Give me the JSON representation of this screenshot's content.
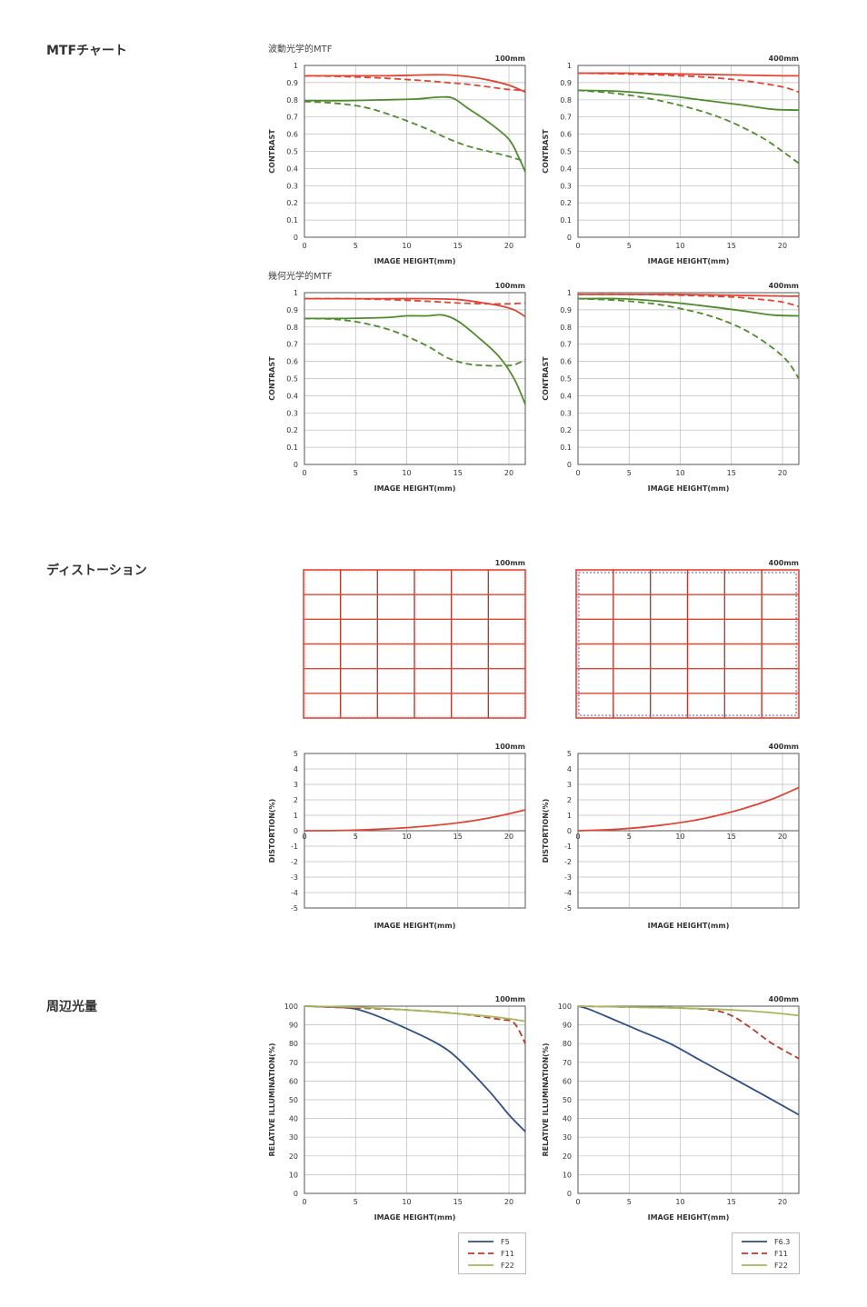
{
  "sections": {
    "mtf": "MTFチャート",
    "distortion": "ディストーション",
    "vignetting": "周辺光量"
  },
  "subtitles": {
    "wave": "波動光学的MTF",
    "geo": "幾何光学的MTF"
  },
  "colors": {
    "red": "#e04535",
    "darkred": "#c0392b",
    "green": "#4e8c2d",
    "blue": "#2f4f86",
    "olive": "#a6b85c",
    "grid": "#bbbbbb",
    "dist_blue": "#4a76c8"
  },
  "chart_data": [
    {
      "id": "mtf-wave-100",
      "type": "line",
      "corner_label": "100mm",
      "xlabel": "IMAGE HEIGHT(mm)",
      "ylabel": "CONTRAST",
      "xlim": [
        0,
        21.6
      ],
      "ylim": [
        0,
        1
      ],
      "xticks": [
        0,
        5,
        10,
        15,
        20
      ],
      "yticks": [
        0,
        0.1,
        0.2,
        0.3,
        0.4,
        0.5,
        0.6,
        0.7,
        0.8,
        0.9,
        1
      ],
      "grid": true,
      "series": [
        {
          "color": "red",
          "dash": false,
          "x": [
            0,
            4,
            8,
            12,
            14,
            16,
            18,
            20,
            21.6
          ],
          "y": [
            0.94,
            0.94,
            0.94,
            0.945,
            0.945,
            0.935,
            0.915,
            0.885,
            0.845
          ]
        },
        {
          "color": "red",
          "dash": true,
          "x": [
            0,
            4,
            8,
            12,
            14,
            16,
            18,
            20,
            21.6
          ],
          "y": [
            0.94,
            0.935,
            0.925,
            0.91,
            0.9,
            0.89,
            0.875,
            0.86,
            0.855
          ]
        },
        {
          "color": "green",
          "dash": false,
          "x": [
            0,
            4,
            8,
            11,
            13,
            14.5,
            16,
            18,
            20,
            21,
            21.6
          ],
          "y": [
            0.795,
            0.795,
            0.8,
            0.805,
            0.815,
            0.81,
            0.75,
            0.67,
            0.57,
            0.46,
            0.38
          ]
        },
        {
          "color": "green",
          "dash": true,
          "x": [
            0,
            3,
            6,
            9,
            12,
            14,
            16,
            18,
            20,
            21.6
          ],
          "y": [
            0.79,
            0.78,
            0.755,
            0.7,
            0.63,
            0.575,
            0.53,
            0.5,
            0.47,
            0.44
          ]
        }
      ]
    },
    {
      "id": "mtf-wave-400",
      "type": "line",
      "corner_label": "400mm",
      "xlabel": "IMAGE HEIGHT(mm)",
      "ylabel": "CONTRAST",
      "xlim": [
        0,
        21.6
      ],
      "ylim": [
        0,
        1
      ],
      "xticks": [
        0,
        5,
        10,
        15,
        20
      ],
      "yticks": [
        0,
        0.1,
        0.2,
        0.3,
        0.4,
        0.5,
        0.6,
        0.7,
        0.8,
        0.9,
        1
      ],
      "grid": true,
      "series": [
        {
          "color": "red",
          "dash": false,
          "x": [
            0,
            5,
            10,
            15,
            20,
            21.6
          ],
          "y": [
            0.955,
            0.955,
            0.95,
            0.945,
            0.94,
            0.94
          ]
        },
        {
          "color": "red",
          "dash": true,
          "x": [
            0,
            5,
            10,
            14,
            17,
            20,
            21.6
          ],
          "y": [
            0.955,
            0.95,
            0.94,
            0.925,
            0.905,
            0.875,
            0.845
          ]
        },
        {
          "color": "green",
          "dash": false,
          "x": [
            0,
            4,
            8,
            12,
            16,
            19,
            21.6
          ],
          "y": [
            0.855,
            0.85,
            0.83,
            0.8,
            0.77,
            0.745,
            0.74
          ]
        },
        {
          "color": "green",
          "dash": true,
          "x": [
            0,
            4,
            8,
            12,
            15,
            18,
            20,
            21.6
          ],
          "y": [
            0.855,
            0.835,
            0.795,
            0.735,
            0.67,
            0.58,
            0.5,
            0.43
          ]
        }
      ]
    },
    {
      "id": "mtf-geo-100",
      "type": "line",
      "corner_label": "100mm",
      "xlabel": "IMAGE HEIGHT(mm)",
      "ylabel": "CONTRAST",
      "xlim": [
        0,
        21.6
      ],
      "ylim": [
        0,
        1
      ],
      "xticks": [
        0,
        5,
        10,
        15,
        20
      ],
      "yticks": [
        0,
        0.1,
        0.2,
        0.3,
        0.4,
        0.5,
        0.6,
        0.7,
        0.8,
        0.9,
        1
      ],
      "grid": true,
      "series": [
        {
          "color": "red",
          "dash": false,
          "x": [
            0,
            4,
            8,
            12,
            15,
            17,
            19,
            20.5,
            21.6
          ],
          "y": [
            0.965,
            0.965,
            0.965,
            0.965,
            0.96,
            0.945,
            0.925,
            0.9,
            0.86
          ]
        },
        {
          "color": "red",
          "dash": true,
          "x": [
            0,
            4,
            8,
            12,
            15,
            18,
            20,
            21.6
          ],
          "y": [
            0.965,
            0.965,
            0.96,
            0.95,
            0.94,
            0.935,
            0.935,
            0.94
          ]
        },
        {
          "color": "green",
          "dash": false,
          "x": [
            0,
            4,
            8,
            10,
            12,
            13.5,
            15,
            17,
            19,
            20.5,
            21.6
          ],
          "y": [
            0.85,
            0.85,
            0.855,
            0.865,
            0.865,
            0.87,
            0.835,
            0.74,
            0.63,
            0.5,
            0.35
          ]
        },
        {
          "color": "green",
          "dash": true,
          "x": [
            0,
            3,
            6,
            9,
            12,
            14,
            16,
            18,
            19.5,
            20.5,
            21.6
          ],
          "y": [
            0.85,
            0.845,
            0.82,
            0.77,
            0.69,
            0.62,
            0.585,
            0.575,
            0.575,
            0.58,
            0.61
          ]
        }
      ]
    },
    {
      "id": "mtf-geo-400",
      "type": "line",
      "corner_label": "400mm",
      "xlabel": "IMAGE HEIGHT(mm)",
      "ylabel": "CONTRAST",
      "xlim": [
        0,
        21.6
      ],
      "ylim": [
        0,
        1
      ],
      "xticks": [
        0,
        5,
        10,
        15,
        20
      ],
      "yticks": [
        0,
        0.1,
        0.2,
        0.3,
        0.4,
        0.5,
        0.6,
        0.7,
        0.8,
        0.9,
        1
      ],
      "grid": true,
      "series": [
        {
          "color": "red",
          "dash": false,
          "x": [
            0,
            5,
            10,
            15,
            20,
            21.6
          ],
          "y": [
            0.99,
            0.99,
            0.99,
            0.985,
            0.98,
            0.98
          ]
        },
        {
          "color": "red",
          "dash": true,
          "x": [
            0,
            5,
            10,
            15,
            18,
            20,
            21.6
          ],
          "y": [
            0.99,
            0.99,
            0.985,
            0.975,
            0.96,
            0.945,
            0.92
          ]
        },
        {
          "color": "green",
          "dash": false,
          "x": [
            0,
            4,
            8,
            12,
            16,
            19,
            21.6
          ],
          "y": [
            0.965,
            0.965,
            0.95,
            0.925,
            0.895,
            0.87,
            0.865
          ]
        },
        {
          "color": "green",
          "dash": true,
          "x": [
            0,
            4,
            8,
            12,
            15,
            17,
            19,
            20.5,
            21.6
          ],
          "y": [
            0.965,
            0.955,
            0.93,
            0.88,
            0.82,
            0.76,
            0.68,
            0.6,
            0.5
          ]
        }
      ]
    },
    {
      "id": "distortion-grid-100",
      "type": "grid",
      "corner_label": "100mm",
      "cols": 6,
      "rows": 6,
      "edge_bulge": 0
    },
    {
      "id": "distortion-grid-400",
      "type": "grid",
      "corner_label": "400mm",
      "cols": 6,
      "rows": 6,
      "edge_bulge": 1
    },
    {
      "id": "distortion-100",
      "type": "line",
      "corner_label": "100mm",
      "xlabel": "IMAGE HEIGHT(mm)",
      "ylabel": "DISTORTION(%)",
      "xlim": [
        0,
        21.6
      ],
      "ylim": [
        -5,
        5
      ],
      "xticks": [
        0,
        5,
        10,
        15,
        20
      ],
      "yticks": [
        -5,
        -4,
        -3,
        -2,
        -1,
        0,
        1,
        2,
        3,
        4,
        5
      ],
      "grid": true,
      "series": [
        {
          "color": "red",
          "dash": false,
          "x": [
            0,
            4,
            8,
            12,
            16,
            19,
            21.6
          ],
          "y": [
            0,
            0.02,
            0.12,
            0.3,
            0.6,
            0.95,
            1.35
          ]
        }
      ]
    },
    {
      "id": "distortion-400",
      "type": "line",
      "corner_label": "400mm",
      "xlabel": "IMAGE HEIGHT(mm)",
      "ylabel": "DISTORTION(%)",
      "xlim": [
        0,
        21.6
      ],
      "ylim": [
        -5,
        5
      ],
      "xticks": [
        0,
        5,
        10,
        15,
        20
      ],
      "yticks": [
        -5,
        -4,
        -3,
        -2,
        -1,
        0,
        1,
        2,
        3,
        4,
        5
      ],
      "grid": true,
      "series": [
        {
          "color": "red",
          "dash": false,
          "x": [
            0,
            4,
            8,
            12,
            16,
            19,
            21.6
          ],
          "y": [
            0,
            0.1,
            0.35,
            0.75,
            1.4,
            2.05,
            2.8
          ]
        }
      ]
    },
    {
      "id": "vignetting-100",
      "type": "line",
      "corner_label": "100mm",
      "xlabel": "IMAGE HEIGHT(mm)",
      "ylabel": "RELATIVE ILLUMINATION(%)",
      "xlim": [
        0,
        21.6
      ],
      "ylim": [
        0,
        100
      ],
      "xticks": [
        0,
        5,
        10,
        15,
        20
      ],
      "yticks": [
        0,
        10,
        20,
        30,
        40,
        50,
        60,
        70,
        80,
        90,
        100
      ],
      "grid": true,
      "legend": [
        "F5",
        "F11",
        "F22"
      ],
      "series": [
        {
          "name": "F5",
          "color": "blue",
          "dash": false,
          "x": [
            0,
            3,
            5,
            7,
            10,
            13,
            15,
            18,
            20,
            21.6
          ],
          "y": [
            100,
            99.5,
            98.5,
            95,
            88,
            80,
            72,
            55,
            42,
            33
          ]
        },
        {
          "name": "F11",
          "color": "darkred",
          "dash": true,
          "x": [
            0,
            5,
            10,
            15,
            19,
            20.5,
            21.6
          ],
          "y": [
            100,
            99,
            98,
            96,
            93,
            91,
            80
          ]
        },
        {
          "name": "F22",
          "color": "olive",
          "dash": false,
          "x": [
            0,
            5,
            10,
            15,
            19,
            21.6
          ],
          "y": [
            100,
            99.5,
            98,
            96,
            94,
            92
          ]
        }
      ]
    },
    {
      "id": "vignetting-400",
      "type": "line",
      "corner_label": "400mm",
      "xlabel": "IMAGE HEIGHT(mm)",
      "ylabel": "RELATIVE ILLUMINATION(%)",
      "xlim": [
        0,
        21.6
      ],
      "ylim": [
        0,
        100
      ],
      "xticks": [
        0,
        5,
        10,
        15,
        20
      ],
      "yticks": [
        0,
        10,
        20,
        30,
        40,
        50,
        60,
        70,
        80,
        90,
        100
      ],
      "grid": true,
      "legend": [
        "F6.3",
        "F11",
        "F22"
      ],
      "series": [
        {
          "name": "F6.3",
          "color": "blue",
          "dash": false,
          "x": [
            0,
            1,
            3,
            6,
            9,
            12,
            15,
            18,
            21.6
          ],
          "y": [
            100,
            98.5,
            94,
            87,
            80,
            71,
            62,
            53,
            42
          ]
        },
        {
          "name": "F11",
          "color": "darkred",
          "dash": true,
          "x": [
            0,
            5,
            10,
            13,
            15,
            17,
            19,
            21.6
          ],
          "y": [
            100,
            99.5,
            99,
            98,
            95,
            88,
            80,
            72
          ]
        },
        {
          "name": "F22",
          "color": "olive",
          "dash": false,
          "x": [
            0,
            5,
            10,
            15,
            19,
            21.6
          ],
          "y": [
            100,
            99.5,
            99,
            98,
            96.5,
            95
          ]
        }
      ]
    }
  ]
}
